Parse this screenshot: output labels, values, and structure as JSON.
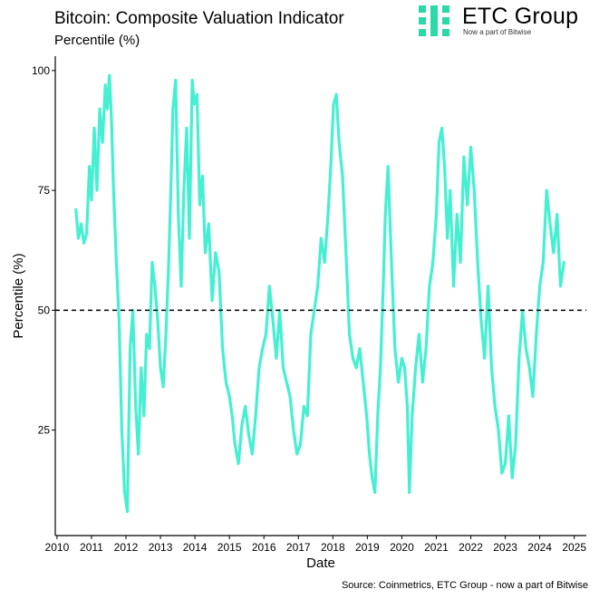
{
  "header": {
    "title": "Bitcoin: Composite Valuation Indicator",
    "subtitle": "Percentile (%)"
  },
  "brand": {
    "name": "ETC Group",
    "tagline": "Now a part of Bitwise",
    "logo_icon": "etc-group-logo-icon",
    "color": "#2bd9a8"
  },
  "footer": {
    "source": "Source: Coinmetrics, ETC Group - now a part of Bitwise"
  },
  "chart_data": {
    "type": "line",
    "xlabel": "Date",
    "ylabel": "Percentile (%)",
    "xlim": [
      2009.95,
      2025.35
    ],
    "ylim": [
      3,
      103
    ],
    "x_ticks": [
      2010,
      2011,
      2012,
      2013,
      2014,
      2015,
      2016,
      2017,
      2018,
      2019,
      2020,
      2021,
      2022,
      2023,
      2024,
      2025
    ],
    "y_ticks": [
      25,
      50,
      75,
      100
    ],
    "reference_line": {
      "y": 50,
      "style": "dashed",
      "color": "#000000"
    },
    "grid": false,
    "series": [
      {
        "color": "#45f0d2",
        "x": [
          2010.55,
          2010.62,
          2010.7,
          2010.78,
          2010.86,
          2010.94,
          2011.0,
          2011.08,
          2011.16,
          2011.24,
          2011.32,
          2011.4,
          2011.46,
          2011.52,
          2011.58,
          2011.64,
          2011.72,
          2011.8,
          2011.88,
          2011.96,
          2012.04,
          2012.12,
          2012.2,
          2012.28,
          2012.36,
          2012.44,
          2012.52,
          2012.6,
          2012.68,
          2012.76,
          2012.84,
          2012.92,
          2013.0,
          2013.08,
          2013.16,
          2013.24,
          2013.3,
          2013.36,
          2013.44,
          2013.52,
          2013.6,
          2013.68,
          2013.76,
          2013.84,
          2013.92,
          2013.98,
          2014.06,
          2014.14,
          2014.22,
          2014.3,
          2014.4,
          2014.5,
          2014.6,
          2014.7,
          2014.8,
          2014.9,
          2015.0,
          2015.08,
          2015.16,
          2015.26,
          2015.36,
          2015.46,
          2015.56,
          2015.66,
          2015.76,
          2015.86,
          2015.96,
          2016.06,
          2016.16,
          2016.26,
          2016.36,
          2016.46,
          2016.56,
          2016.66,
          2016.76,
          2016.86,
          2016.96,
          2017.06,
          2017.16,
          2017.26,
          2017.36,
          2017.46,
          2017.56,
          2017.66,
          2017.76,
          2017.86,
          2017.94,
          2018.02,
          2018.1,
          2018.18,
          2018.28,
          2018.38,
          2018.48,
          2018.58,
          2018.68,
          2018.78,
          2018.88,
          2018.98,
          2019.06,
          2019.14,
          2019.22,
          2019.3,
          2019.38,
          2019.46,
          2019.52,
          2019.6,
          2019.7,
          2019.8,
          2019.9,
          2020.0,
          2020.08,
          2020.16,
          2020.22,
          2020.3,
          2020.4,
          2020.5,
          2020.6,
          2020.7,
          2020.8,
          2020.9,
          2021.0,
          2021.08,
          2021.16,
          2021.24,
          2021.32,
          2021.4,
          2021.5,
          2021.6,
          2021.7,
          2021.8,
          2021.9,
          2022.0,
          2022.1,
          2022.2,
          2022.3,
          2022.4,
          2022.5,
          2022.6,
          2022.7,
          2022.8,
          2022.9,
          2023.0,
          2023.1,
          2023.2,
          2023.3,
          2023.4,
          2023.5,
          2023.6,
          2023.7,
          2023.8,
          2023.9,
          2024.0,
          2024.1,
          2024.2,
          2024.3,
          2024.4,
          2024.5,
          2024.6,
          2024.7
        ],
        "y": [
          71,
          65,
          68,
          64,
          66,
          80,
          73,
          88,
          75,
          92,
          85,
          97,
          92,
          99,
          90,
          75,
          60,
          48,
          25,
          12,
          8,
          42,
          50,
          30,
          20,
          38,
          28,
          45,
          42,
          60,
          55,
          48,
          38,
          34,
          45,
          60,
          75,
          92,
          98,
          70,
          55,
          75,
          88,
          65,
          98,
          93,
          95,
          72,
          78,
          62,
          68,
          52,
          62,
          58,
          42,
          35,
          32,
          28,
          22,
          18,
          26,
          30,
          24,
          20,
          28,
          38,
          42,
          45,
          55,
          48,
          40,
          50,
          38,
          35,
          32,
          25,
          20,
          22,
          30,
          28,
          45,
          50,
          55,
          65,
          60,
          70,
          80,
          93,
          95,
          85,
          78,
          62,
          45,
          40,
          38,
          42,
          35,
          28,
          20,
          15,
          12,
          28,
          38,
          55,
          70,
          80,
          60,
          42,
          35,
          40,
          38,
          30,
          12,
          28,
          38,
          45,
          35,
          42,
          55,
          60,
          70,
          85,
          88,
          80,
          65,
          75,
          55,
          70,
          60,
          82,
          72,
          84,
          75,
          60,
          48,
          40,
          55,
          38,
          30,
          25,
          16,
          18,
          28,
          15,
          22,
          40,
          50,
          42,
          38,
          32,
          45,
          55,
          60,
          75,
          68,
          62,
          70,
          55,
          60
        ]
      }
    ]
  }
}
